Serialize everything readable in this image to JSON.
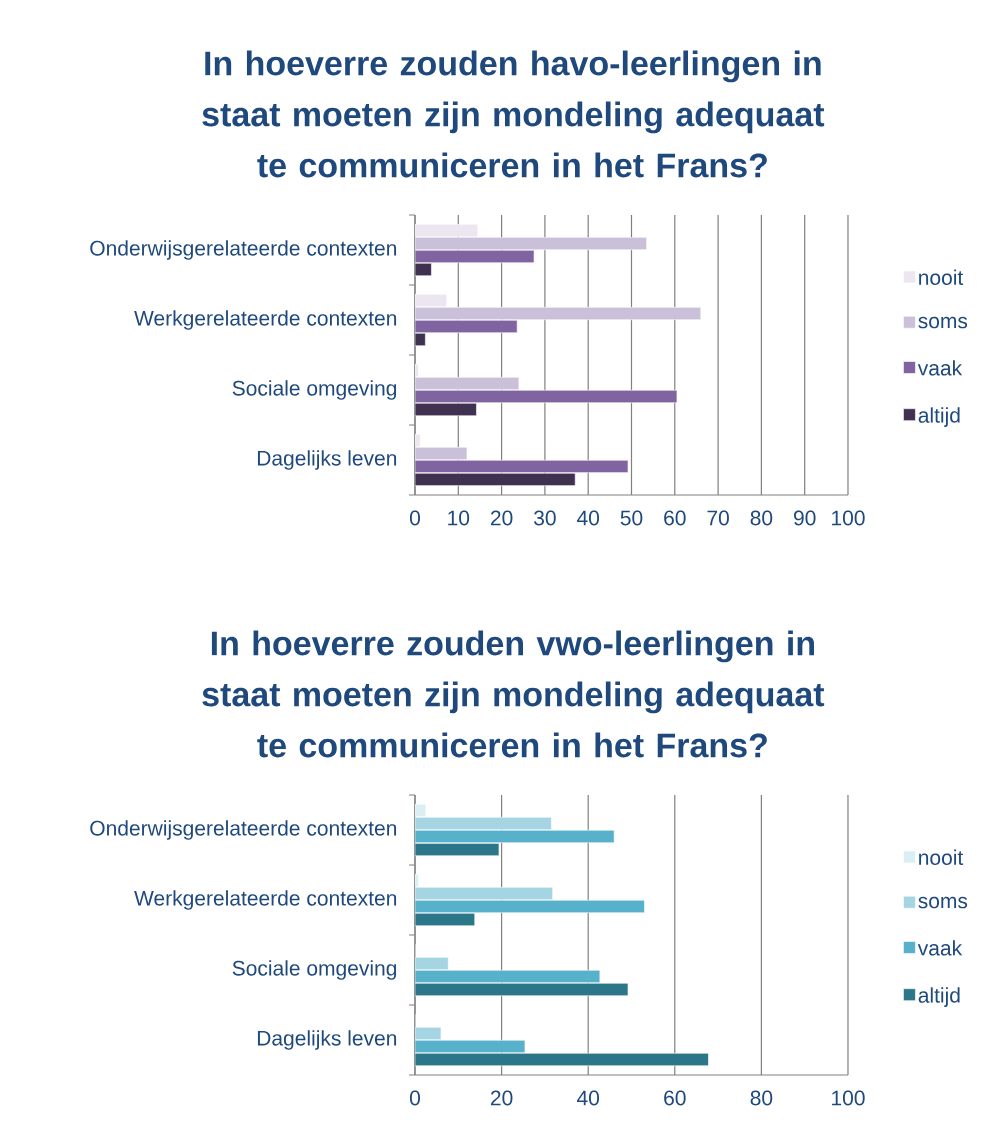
{
  "chart_data": [
    {
      "type": "bar",
      "orientation": "horizontal",
      "title": "In hoeverre zouden havo-leerlingen in staat moeten zijn mondeling adequaat te communiceren in het Frans?",
      "categories": [
        "Onderwijsgerelateerde contexten",
        "Werkgerelateerde contexten",
        "Sociale omgeving",
        "Dagelijks leven"
      ],
      "series": [
        {
          "name": "nooit",
          "color": "#ece6f0",
          "values": [
            14.5,
            7.3,
            0.8,
            1.2
          ]
        },
        {
          "name": "soms",
          "color": "#cbc0da",
          "values": [
            53.5,
            66,
            24,
            12
          ]
        },
        {
          "name": "vaak",
          "color": "#8064a2",
          "values": [
            27.5,
            23.6,
            60.5,
            49.2
          ]
        },
        {
          "name": "altijd",
          "color": "#403151",
          "values": [
            3.8,
            2.4,
            14.2,
            37
          ]
        }
      ],
      "xlim": [
        0,
        100
      ],
      "xticks": [
        0,
        10,
        20,
        30,
        40,
        50,
        60,
        70,
        80,
        90,
        100
      ],
      "grid": "x",
      "legend": "right"
    },
    {
      "type": "bar",
      "orientation": "horizontal",
      "title": "In hoeverre zouden vwo-leerlingen in staat moeten zijn mondeling adequaat te communiceren in het Frans?",
      "categories": [
        "Onderwijsgerelateerde contexten",
        "Werkgerelateerde contexten",
        "Sociale omgeving",
        "Dagelijks leven"
      ],
      "series": [
        {
          "name": "nooit",
          "color": "#daeef3",
          "values": [
            2.5,
            0.8,
            0,
            0
          ]
        },
        {
          "name": "soms",
          "color": "#a5d5e2",
          "values": [
            31.5,
            31.8,
            7.7,
            6
          ]
        },
        {
          "name": "vaak",
          "color": "#57b1ca",
          "values": [
            46,
            53,
            42.7,
            25.4
          ]
        },
        {
          "name": "altijd",
          "color": "#2c7689",
          "values": [
            19.4,
            13.8,
            49.2,
            67.8
          ]
        }
      ],
      "xlim": [
        0,
        100
      ],
      "xticks": [
        0,
        20,
        40,
        60,
        80,
        100
      ],
      "grid": "x",
      "legend": "right"
    }
  ]
}
